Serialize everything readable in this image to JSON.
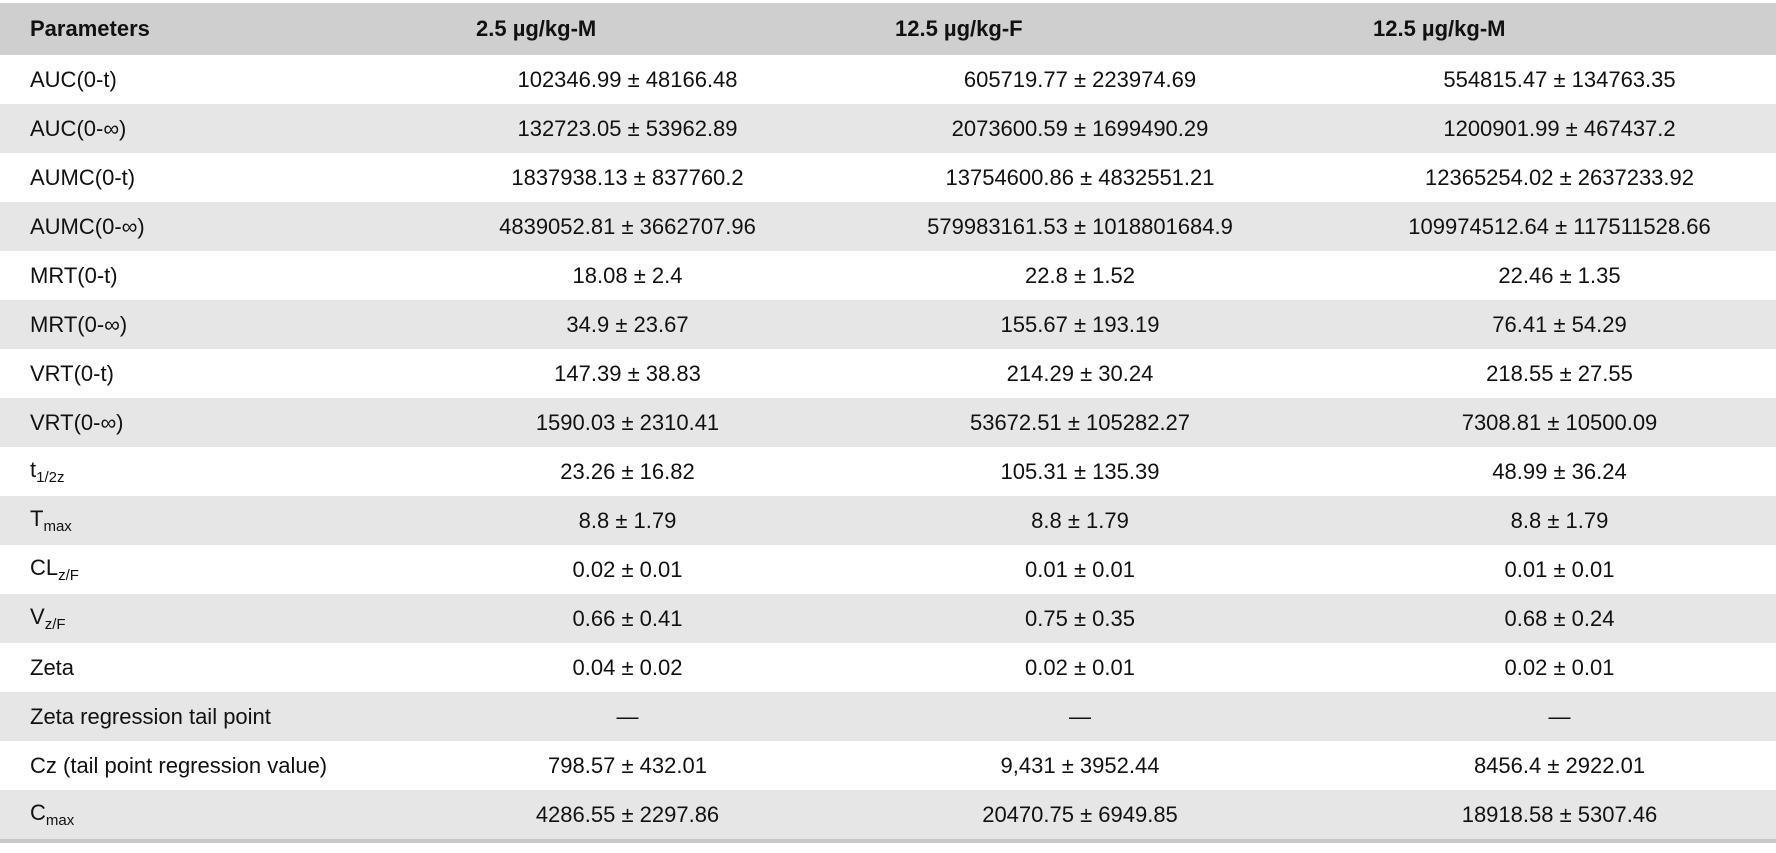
{
  "headers": [
    "Parameters",
    "2.5 µg/kg-M",
    "12.5 µg/kg-F",
    "12.5 µg/kg-M"
  ],
  "rows": [
    {
      "param": "AUC(0-t)",
      "sub": "",
      "v1": "102346.99 ± 48166.48",
      "v2": "605719.77 ± 223974.69",
      "v3": "554815.47 ± 134763.35"
    },
    {
      "param": "AUC(0-∞)",
      "sub": "",
      "v1": "132723.05 ± 53962.89",
      "v2": "2073600.59 ± 1699490.29",
      "v3": "1200901.99 ± 467437.2"
    },
    {
      "param": "AUMC(0-t)",
      "sub": "",
      "v1": "1837938.13 ± 837760.2",
      "v2": "13754600.86 ± 4832551.21",
      "v3": "12365254.02 ± 2637233.92"
    },
    {
      "param": "AUMC(0-∞)",
      "sub": "",
      "v1": "4839052.81 ± 3662707.96",
      "v2": "579983161.53 ± 1018801684.9",
      "v3": "109974512.64 ± 117511528.66"
    },
    {
      "param": "MRT(0-t)",
      "sub": "",
      "v1": "18.08 ± 2.4",
      "v2": "22.8 ± 1.52",
      "v3": "22.46 ± 1.35"
    },
    {
      "param": "MRT(0-∞)",
      "sub": "",
      "v1": "34.9 ± 23.67",
      "v2": "155.67 ± 193.19",
      "v3": "76.41 ± 54.29"
    },
    {
      "param": "VRT(0-t)",
      "sub": "",
      "v1": "147.39 ± 38.83",
      "v2": "214.29 ± 30.24",
      "v3": "218.55 ± 27.55"
    },
    {
      "param": "VRT(0-∞)",
      "sub": "",
      "v1": "1590.03 ± 2310.41",
      "v2": "53672.51 ± 105282.27",
      "v3": "7308.81 ± 10500.09"
    },
    {
      "param": "t",
      "sub": "1/2z",
      "v1": "23.26 ± 16.82",
      "v2": "105.31 ± 135.39",
      "v3": "48.99 ± 36.24"
    },
    {
      "param": "T",
      "sub": "max",
      "v1": "8.8 ± 1.79",
      "v2": "8.8 ± 1.79",
      "v3": "8.8 ± 1.79"
    },
    {
      "param": "CL",
      "sub": "z/F",
      "v1": "0.02 ± 0.01",
      "v2": "0.01 ± 0.01",
      "v3": "0.01 ± 0.01"
    },
    {
      "param": "V",
      "sub": "z/F",
      "v1": "0.66 ± 0.41",
      "v2": "0.75 ± 0.35",
      "v3": "0.68 ± 0.24"
    },
    {
      "param": "Zeta",
      "sub": "",
      "v1": "0.04 ± 0.02",
      "v2": "0.02 ± 0.01",
      "v3": "0.02 ± 0.01"
    },
    {
      "param": "Zeta regression tail point",
      "sub": "",
      "v1": "—",
      "v2": "—",
      "v3": "—"
    },
    {
      "param": "Cz (tail point regression value)",
      "sub": "",
      "v1": "798.57 ± 432.01",
      "v2": "9,431 ± 3952.44",
      "v3": "8456.4 ± 2922.01"
    },
    {
      "param": "C",
      "sub": "max",
      "v1": "4286.55 ± 2297.86",
      "v2": "20470.75 ± 6949.85",
      "v3": "18918.58 ± 5307.46"
    }
  ]
}
